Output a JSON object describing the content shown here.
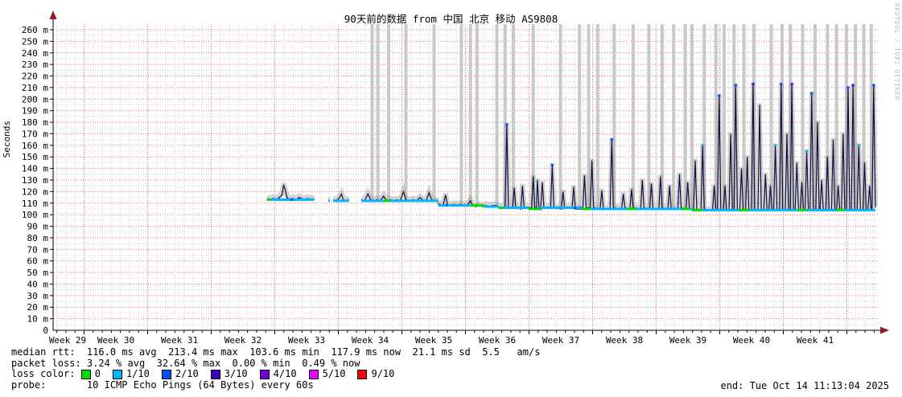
{
  "title": "90天前的数据 from 中国 北京 移动 AS9808",
  "watermark": "RRDTOOL / TOBI OETIKER",
  "end_time": "end: Tue Oct 14 11:13:04 2025",
  "legend": {
    "median_line": "median rtt:  116.0 ms avg  213.4 ms max  103.6 ms min  117.9 ms now  21.1 ms sd  5.5   am/s",
    "loss_line": "packet loss: 3.24 % avg  32.64 % max  0.00 % min  0.49 % now",
    "loss_color_label": "loss color: ",
    "loss_colors": [
      {
        "label": "0",
        "color": "#00e000"
      },
      {
        "label": "1/10",
        "color": "#00b4ff"
      },
      {
        "label": "2/10",
        "color": "#0050ff"
      },
      {
        "label": "3/10",
        "color": "#3c00c8"
      },
      {
        "label": "4/10",
        "color": "#7000d8"
      },
      {
        "label": "5/10",
        "color": "#ee00ff"
      },
      {
        "label": "9/10",
        "color": "#ff0000"
      }
    ],
    "probe_line": "probe:       10 ICMP Echo Pings (64 Bytes) every 60s"
  },
  "chart_data": {
    "type": "line",
    "subtype": "smokeping-latency",
    "title": "90天前的数据 from 中国 北京 移动 AS9808",
    "ylabel": "Seconds",
    "y_unit": "ms (m = milli)",
    "y_max": 260,
    "y_step_major": 10,
    "y_step_minor": 5,
    "grid": true,
    "y_tick_labels": [
      "0",
      "10 m",
      "20 m",
      "30 m",
      "40 m",
      "50 m",
      "60 m",
      "70 m",
      "80 m",
      "90 m",
      "100 m",
      "110 m",
      "120 m",
      "130 m",
      "140 m",
      "150 m",
      "160 m",
      "170 m",
      "180 m",
      "190 m",
      "200 m",
      "210 m",
      "220 m",
      "230 m",
      "240 m",
      "250 m",
      "260 m"
    ],
    "x_tick_labels": [
      "Week 29",
      "Week 30",
      "Week 31",
      "Week 32",
      "Week 33",
      "Week 34",
      "Week 35",
      "Week 36",
      "Week 37",
      "Week 38",
      "Week 39",
      "Week 40",
      "Week 41"
    ],
    "stats": {
      "median_rtt_avg_ms": 116.0,
      "median_rtt_max_ms": 213.4,
      "median_rtt_min_ms": 103.6,
      "median_rtt_now_ms": 117.9,
      "sd_ms": 21.1,
      "am_s": 5.5,
      "packet_loss_avg_pct": 3.24,
      "packet_loss_max_pct": 32.64,
      "packet_loss_min_pct": 0.0,
      "packet_loss_now_pct": 0.49
    },
    "colors": {
      "median_line": "#101040",
      "smoke": "#999999",
      "gap_bar": "#c6c6c6",
      "grid_major": "#f56a6a",
      "grid_minor": "#cfcfcf",
      "axis": "#000000",
      "arrow": "#8f2020",
      "loss_marker": {
        "g": "#00e000",
        "c": "#00b4ff",
        "b": "#0050ff",
        "p": "#7000d8"
      }
    },
    "median_segments": [
      [
        [
          0.259,
          114
        ],
        [
          0.262,
          113
        ],
        [
          0.266,
          114
        ],
        [
          0.27,
          113
        ],
        [
          0.274,
          115
        ],
        [
          0.277,
          117
        ],
        [
          0.279,
          126
        ],
        [
          0.281,
          121
        ],
        [
          0.283,
          115
        ],
        [
          0.286,
          113
        ],
        [
          0.29,
          114
        ],
        [
          0.294,
          113
        ],
        [
          0.298,
          115
        ],
        [
          0.303,
          113
        ],
        [
          0.308,
          114
        ],
        [
          0.313,
          113
        ],
        [
          0.316,
          114
        ]
      ],
      [
        [
          0.333,
          112
        ],
        [
          0.335,
          112
        ]
      ],
      [
        [
          0.339,
          113
        ],
        [
          0.342,
          112
        ],
        [
          0.346,
          114
        ],
        [
          0.349,
          118
        ],
        [
          0.351,
          113
        ],
        [
          0.354,
          112
        ],
        [
          0.358,
          113
        ]
      ],
      [
        [
          0.373,
          113
        ],
        [
          0.377,
          112
        ],
        [
          0.381,
          118
        ],
        [
          0.384,
          113
        ],
        [
          0.388,
          112
        ],
        [
          0.392,
          113
        ],
        [
          0.396,
          112
        ],
        [
          0.4,
          116
        ],
        [
          0.404,
          112
        ],
        [
          0.408,
          113
        ],
        [
          0.412,
          112
        ],
        [
          0.416,
          113
        ],
        [
          0.42,
          112
        ],
        [
          0.424,
          120
        ],
        [
          0.427,
          113
        ],
        [
          0.431,
          112
        ],
        [
          0.436,
          113
        ],
        [
          0.44,
          112
        ],
        [
          0.444,
          115
        ],
        [
          0.448,
          112
        ],
        [
          0.452,
          113
        ],
        [
          0.455,
          119
        ],
        [
          0.458,
          113
        ],
        [
          0.462,
          112
        ],
        [
          0.466,
          111
        ]
      ],
      [
        [
          0.466,
          110
        ],
        [
          0.469,
          108
        ],
        [
          0.472,
          108
        ],
        [
          0.475,
          117
        ],
        [
          0.477,
          109
        ],
        [
          0.481,
          108
        ],
        [
          0.485,
          109
        ],
        [
          0.489,
          108
        ],
        [
          0.493,
          109
        ],
        [
          0.497,
          108
        ],
        [
          0.501,
          108
        ],
        [
          0.505,
          112
        ],
        [
          0.508,
          108
        ],
        [
          0.512,
          107
        ],
        [
          0.516,
          108
        ],
        [
          0.52,
          107
        ],
        [
          0.524,
          108
        ],
        [
          0.528,
          107
        ],
        [
          0.532,
          108
        ],
        [
          0.536,
          108
        ],
        [
          0.539,
          107
        ]
      ],
      [
        [
          0.539,
          106
        ],
        [
          0.547,
          106
        ],
        [
          0.549,
          178
        ],
        [
          0.551,
          106
        ],
        [
          0.556,
          106
        ],
        [
          0.558,
          123
        ],
        [
          0.56,
          106
        ],
        [
          0.566,
          105
        ],
        [
          0.568,
          125
        ],
        [
          0.57,
          106
        ],
        [
          0.579,
          106
        ],
        [
          0.581,
          133
        ],
        [
          0.583,
          106
        ],
        [
          0.585,
          106
        ],
        [
          0.586,
          130
        ],
        [
          0.588,
          106
        ],
        [
          0.59,
          105
        ],
        [
          0.592,
          128
        ],
        [
          0.594,
          106
        ],
        [
          0.602,
          106
        ],
        [
          0.604,
          143
        ],
        [
          0.606,
          106
        ],
        [
          0.615,
          105
        ],
        [
          0.617,
          120
        ],
        [
          0.619,
          106
        ],
        [
          0.628,
          106
        ],
        [
          0.63,
          124
        ],
        [
          0.632,
          105
        ],
        [
          0.641,
          105
        ],
        [
          0.643,
          134
        ],
        [
          0.645,
          106
        ],
        [
          0.65,
          106
        ],
        [
          0.652,
          147
        ],
        [
          0.654,
          106
        ],
        [
          0.662,
          105
        ],
        [
          0.664,
          121
        ],
        [
          0.666,
          105
        ],
        [
          0.674,
          105
        ],
        [
          0.676,
          165
        ],
        [
          0.678,
          106
        ],
        [
          0.688,
          105
        ],
        [
          0.69,
          118
        ],
        [
          0.692,
          106
        ],
        [
          0.698,
          105
        ],
        [
          0.7,
          122
        ],
        [
          0.702,
          106
        ],
        [
          0.711,
          105
        ],
        [
          0.713,
          130
        ],
        [
          0.715,
          106
        ],
        [
          0.722,
          105
        ],
        [
          0.724,
          127
        ],
        [
          0.726,
          105
        ],
        [
          0.733,
          105
        ],
        [
          0.735,
          133
        ],
        [
          0.737,
          106
        ],
        [
          0.744,
          105
        ],
        [
          0.746,
          125
        ],
        [
          0.748,
          105
        ],
        [
          0.756,
          105
        ],
        [
          0.758,
          135
        ],
        [
          0.76,
          106
        ],
        [
          0.766,
          105
        ],
        [
          0.768,
          128
        ],
        [
          0.77,
          105
        ],
        [
          0.773,
          105
        ]
      ],
      [
        [
          0.773,
          104
        ],
        [
          0.775,
          104
        ],
        [
          0.777,
          147
        ],
        [
          0.779,
          104
        ],
        [
          0.784,
          104
        ],
        [
          0.786,
          160
        ],
        [
          0.788,
          104
        ],
        [
          0.798,
          104
        ],
        [
          0.8,
          125
        ],
        [
          0.802,
          104
        ],
        [
          0.804,
          104
        ],
        [
          0.806,
          203
        ],
        [
          0.808,
          104
        ],
        [
          0.811,
          104
        ],
        [
          0.813,
          125
        ],
        [
          0.815,
          104
        ],
        [
          0.818,
          104
        ],
        [
          0.82,
          170
        ],
        [
          0.822,
          104
        ],
        [
          0.824,
          104
        ],
        [
          0.826,
          212
        ],
        [
          0.828,
          104
        ],
        [
          0.831,
          104
        ],
        [
          0.833,
          140
        ],
        [
          0.835,
          104
        ],
        [
          0.838,
          104
        ],
        [
          0.84,
          150
        ],
        [
          0.842,
          104
        ],
        [
          0.845,
          104
        ],
        [
          0.847,
          213
        ],
        [
          0.849,
          104
        ],
        [
          0.853,
          104
        ],
        [
          0.855,
          195
        ],
        [
          0.857,
          104
        ],
        [
          0.86,
          104
        ],
        [
          0.862,
          135
        ],
        [
          0.864,
          104
        ],
        [
          0.866,
          104
        ],
        [
          0.868,
          125
        ],
        [
          0.87,
          104
        ],
        [
          0.872,
          104
        ],
        [
          0.874,
          160
        ],
        [
          0.876,
          104
        ],
        [
          0.879,
          104
        ],
        [
          0.881,
          213
        ],
        [
          0.883,
          104
        ],
        [
          0.886,
          104
        ],
        [
          0.888,
          170
        ],
        [
          0.89,
          104
        ],
        [
          0.892,
          104
        ],
        [
          0.894,
          213
        ],
        [
          0.896,
          104
        ],
        [
          0.898,
          104
        ],
        [
          0.9,
          145
        ],
        [
          0.902,
          104
        ],
        [
          0.904,
          104
        ],
        [
          0.906,
          128
        ],
        [
          0.908,
          104
        ],
        [
          0.91,
          104
        ],
        [
          0.912,
          155
        ],
        [
          0.914,
          104
        ],
        [
          0.916,
          104
        ],
        [
          0.918,
          205
        ],
        [
          0.92,
          104
        ],
        [
          0.923,
          104
        ],
        [
          0.925,
          180
        ],
        [
          0.927,
          104
        ],
        [
          0.928,
          104
        ],
        [
          0.93,
          130
        ],
        [
          0.932,
          104
        ],
        [
          0.935,
          104
        ],
        [
          0.937,
          150
        ],
        [
          0.939,
          104
        ],
        [
          0.942,
          104
        ],
        [
          0.944,
          165
        ],
        [
          0.946,
          104
        ],
        [
          0.948,
          104
        ],
        [
          0.95,
          125
        ],
        [
          0.952,
          104
        ],
        [
          0.954,
          104
        ],
        [
          0.956,
          170
        ],
        [
          0.958,
          104
        ],
        [
          0.96,
          104
        ],
        [
          0.962,
          210
        ],
        [
          0.964,
          104
        ],
        [
          0.966,
          104
        ],
        [
          0.968,
          212
        ],
        [
          0.97,
          104
        ],
        [
          0.973,
          104
        ],
        [
          0.975,
          160
        ],
        [
          0.977,
          104
        ],
        [
          0.98,
          104
        ],
        [
          0.982,
          145
        ],
        [
          0.984,
          104
        ],
        [
          0.986,
          104
        ],
        [
          0.988,
          125
        ],
        [
          0.99,
          104
        ],
        [
          0.991,
          104
        ],
        [
          0.993,
          212
        ],
        [
          0.995,
          106
        ]
      ]
    ],
    "gray_bars": [
      [
        0.386,
        112
      ],
      [
        0.393,
        112
      ],
      [
        0.406,
        112
      ],
      [
        0.427,
        112
      ],
      [
        0.461,
        111
      ],
      [
        0.494,
        108
      ],
      [
        0.505,
        108
      ],
      [
        0.513,
        107
      ],
      [
        0.537,
        107
      ],
      [
        0.547,
        106
      ],
      [
        0.557,
        106
      ],
      [
        0.581,
        106
      ],
      [
        0.614,
        105
      ],
      [
        0.637,
        105
      ],
      [
        0.648,
        105
      ],
      [
        0.659,
        105
      ],
      [
        0.679,
        105
      ],
      [
        0.702,
        105
      ],
      [
        0.721,
        105
      ],
      [
        0.737,
        105
      ],
      [
        0.751,
        105
      ],
      [
        0.765,
        105
      ],
      [
        0.773,
        104
      ],
      [
        0.788,
        104
      ],
      [
        0.802,
        104
      ],
      [
        0.812,
        104
      ],
      [
        0.824,
        104
      ],
      [
        0.836,
        104
      ],
      [
        0.848,
        104
      ],
      [
        0.869,
        104
      ],
      [
        0.882,
        104
      ],
      [
        0.892,
        104
      ],
      [
        0.907,
        104
      ],
      [
        0.922,
        104
      ],
      [
        0.937,
        104
      ],
      [
        0.948,
        104
      ],
      [
        0.96,
        104
      ],
      [
        0.971,
        104
      ],
      [
        0.981,
        104
      ],
      [
        0.99,
        104
      ]
    ],
    "loss_runs": [
      [
        0.259,
        0.263,
        113,
        "g"
      ],
      [
        0.263,
        0.316,
        113,
        "c"
      ],
      [
        0.287,
        0.29,
        113,
        "b"
      ],
      [
        0.333,
        0.335,
        112,
        "c"
      ],
      [
        0.339,
        0.358,
        112,
        "c"
      ],
      [
        0.373,
        0.4,
        112,
        "c"
      ],
      [
        0.4,
        0.408,
        112,
        "g"
      ],
      [
        0.408,
        0.466,
        112,
        "c"
      ],
      [
        0.466,
        0.505,
        108,
        "c"
      ],
      [
        0.475,
        0.477,
        108,
        "b"
      ],
      [
        0.505,
        0.522,
        108,
        "g"
      ],
      [
        0.522,
        0.539,
        107,
        "c"
      ],
      [
        0.539,
        0.545,
        106,
        "g"
      ],
      [
        0.545,
        0.575,
        106,
        "c"
      ],
      [
        0.575,
        0.59,
        105,
        "g"
      ],
      [
        0.59,
        0.64,
        106,
        "c"
      ],
      [
        0.63,
        0.633,
        106,
        "b"
      ],
      [
        0.64,
        0.65,
        105,
        "g"
      ],
      [
        0.65,
        0.695,
        105,
        "c"
      ],
      [
        0.695,
        0.705,
        105,
        "g"
      ],
      [
        0.705,
        0.76,
        105,
        "c"
      ],
      [
        0.76,
        0.77,
        105,
        "g"
      ],
      [
        0.77,
        0.773,
        105,
        "c"
      ],
      [
        0.773,
        0.786,
        104,
        "g"
      ],
      [
        0.786,
        0.83,
        104,
        "c"
      ],
      [
        0.83,
        0.842,
        104,
        "g"
      ],
      [
        0.842,
        0.9,
        104,
        "c"
      ],
      [
        0.9,
        0.912,
        104,
        "g"
      ],
      [
        0.912,
        0.948,
        104,
        "c"
      ],
      [
        0.948,
        0.958,
        104,
        "g"
      ],
      [
        0.958,
        0.995,
        104,
        "c"
      ]
    ],
    "spike_markers": [
      [
        0.549,
        178,
        "b"
      ],
      [
        0.604,
        143,
        "b"
      ],
      [
        0.676,
        165,
        "b"
      ],
      [
        0.786,
        160,
        "c"
      ],
      [
        0.806,
        203,
        "b"
      ],
      [
        0.826,
        212,
        "b"
      ],
      [
        0.847,
        213,
        "p"
      ],
      [
        0.874,
        160,
        "c"
      ],
      [
        0.881,
        213,
        "b"
      ],
      [
        0.894,
        213,
        "p"
      ],
      [
        0.912,
        155,
        "c"
      ],
      [
        0.918,
        205,
        "b"
      ],
      [
        0.962,
        210,
        "b"
      ],
      [
        0.968,
        212,
        "p"
      ],
      [
        0.975,
        160,
        "c"
      ],
      [
        0.993,
        212,
        "b"
      ]
    ]
  }
}
